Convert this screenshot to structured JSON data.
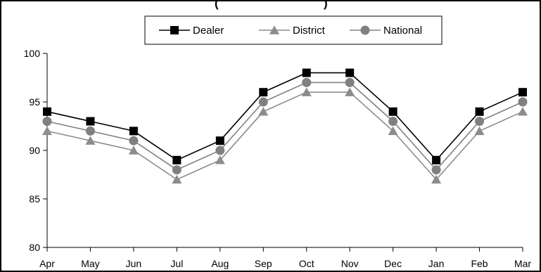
{
  "chart_data": {
    "type": "line",
    "title": "(",
    "title_right": ")",
    "categories": [
      "Apr",
      "May",
      "Jun",
      "Jul",
      "Aug",
      "Sep",
      "Oct",
      "Nov",
      "Dec",
      "Jan",
      "Feb",
      "Mar"
    ],
    "series": [
      {
        "name": "Dealer",
        "marker": "square",
        "color": "#000000",
        "values": [
          94,
          93,
          92,
          89,
          91,
          96,
          98,
          98,
          94,
          89,
          94,
          96
        ]
      },
      {
        "name": "District",
        "marker": "triangle",
        "color": "#8c8c8c",
        "values": [
          92,
          91,
          90,
          87,
          89,
          94,
          96,
          96,
          92,
          87,
          92,
          94
        ]
      },
      {
        "name": "National",
        "marker": "circle",
        "color": "#808080",
        "values": [
          93,
          92,
          91,
          88,
          90,
          95,
          97,
          97,
          93,
          88,
          93,
          95
        ]
      }
    ],
    "xlabel": "",
    "ylabel": "",
    "ylim": [
      80,
      100
    ],
    "yticks": [
      "80",
      "85",
      "90",
      "95",
      "100"
    ],
    "grid": false,
    "legend_position": "top-center"
  }
}
